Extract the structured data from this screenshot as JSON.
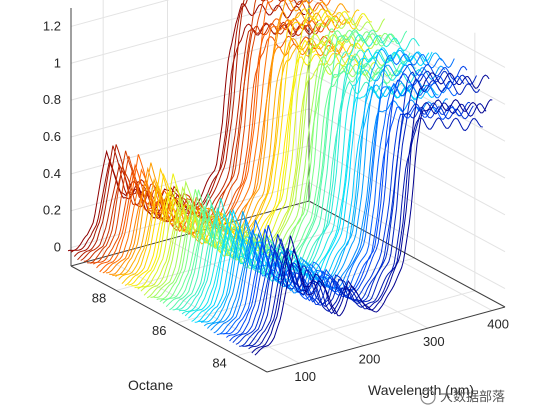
{
  "chart_data": {
    "type": "line",
    "plot_style": "3d-waterfall",
    "xlabel": "Wavelength (nm)",
    "ylabel": "Octane",
    "zlabel": "",
    "x_ticks": [
      "100",
      "200",
      "300",
      "400"
    ],
    "y_ticks": [
      "84",
      "86",
      "88"
    ],
    "z_ticks": [
      "0",
      "0.2",
      "0.4",
      "0.6",
      "0.8",
      "1",
      "1.2"
    ],
    "xlim": [
      50,
      420
    ],
    "ylim": [
      83,
      89.5
    ],
    "zlim": [
      -0.1,
      1.3
    ],
    "grid": true,
    "colormap": [
      "#00008f",
      "#0050ff",
      "#00dfff",
      "#70ff8f",
      "#ffef00",
      "#ff6000",
      "#8f0000"
    ],
    "num_series": 60,
    "octane_range": [
      83.4,
      89.6
    ],
    "spectrum_profile": {
      "x": [
        50,
        60,
        70,
        80,
        90,
        100,
        110,
        120,
        130,
        140,
        150,
        160,
        170,
        180,
        190,
        200,
        210,
        220,
        230,
        240,
        250,
        260,
        270,
        280,
        290,
        300,
        310,
        320,
        330,
        340,
        350,
        360,
        370,
        380,
        390,
        400
      ],
      "y": [
        -0.04,
        -0.03,
        -0.01,
        0.03,
        0.12,
        0.33,
        0.52,
        0.4,
        0.24,
        0.22,
        0.3,
        0.24,
        0.11,
        0.05,
        0.09,
        0.2,
        0.16,
        0.07,
        0.03,
        0.02,
        0.04,
        0.11,
        0.18,
        0.24,
        0.5,
        0.9,
        1.12,
        1.18,
        1.16,
        1.15,
        1.14,
        1.13,
        1.12,
        1.1,
        1.08,
        1.07
      ]
    }
  },
  "watermark": "大数据部落"
}
